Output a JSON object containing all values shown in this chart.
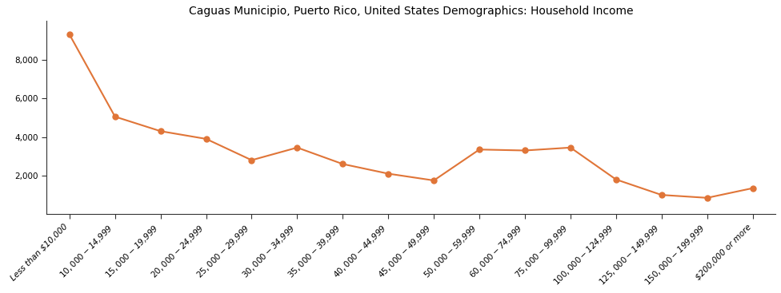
{
  "title": "Caguas Municipio, Puerto Rico, United States Demographics: Household Income",
  "categories": [
    "Less than $10,000",
    "$10,000 - $14,999",
    "$15,000 - $19,999",
    "$20,000 - $24,999",
    "$25,000 - $29,999",
    "$30,000 - $34,999",
    "$35,000 - $39,999",
    "$40,000 - $44,999",
    "$45,000 - $49,999",
    "$50,000 - $59,999",
    "$60,000 - $74,999",
    "$75,000 - $99,999",
    "$100,000 - $124,999",
    "$125,000 - $149,999",
    "$150,000 - $199,999",
    "$200,000 or more"
  ],
  "values": [
    9300,
    5050,
    4300,
    3900,
    2800,
    3450,
    2600,
    2100,
    1750,
    3350,
    3300,
    3450,
    1800,
    1000,
    850,
    1350
  ],
  "line_color": "#E07538",
  "marker_color": "#E07538",
  "marker_style": "o",
  "marker_size": 5,
  "line_width": 1.5,
  "ylim": [
    0,
    10000
  ],
  "yticks": [
    2000,
    4000,
    6000,
    8000
  ],
  "background_color": "#ffffff",
  "title_fontsize": 10,
  "tick_fontsize": 7.5,
  "xtick_rotation": 45
}
